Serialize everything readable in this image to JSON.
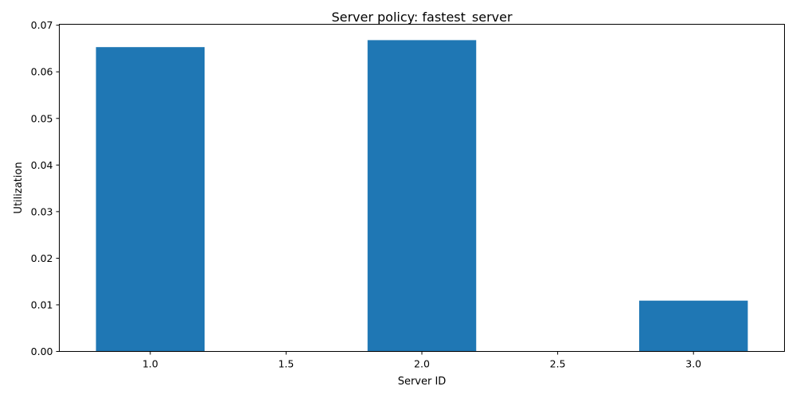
{
  "chart_data": {
    "type": "bar",
    "title": "Server policy: fastest_server",
    "xlabel": "Server ID",
    "ylabel": "Utilization",
    "x": [
      1,
      2,
      3
    ],
    "values": [
      0.0653,
      0.0668,
      0.0109
    ],
    "bar_width": 0.4,
    "xlim": [
      0.665,
      3.335
    ],
    "ylim": [
      0,
      0.0702
    ],
    "x_ticks": [
      1.0,
      1.5,
      2.0,
      2.5,
      3.0
    ],
    "x_tick_labels": [
      "1.0",
      "1.5",
      "2.0",
      "2.5",
      "3.0"
    ],
    "y_ticks": [
      0,
      0.01,
      0.02,
      0.03,
      0.04,
      0.05,
      0.06,
      0.07
    ],
    "y_tick_labels": [
      "0.00",
      "0.01",
      "0.02",
      "0.03",
      "0.04",
      "0.05",
      "0.06",
      "0.07"
    ],
    "grid": false,
    "legend": "none",
    "bar_color": "#1f77b4"
  }
}
